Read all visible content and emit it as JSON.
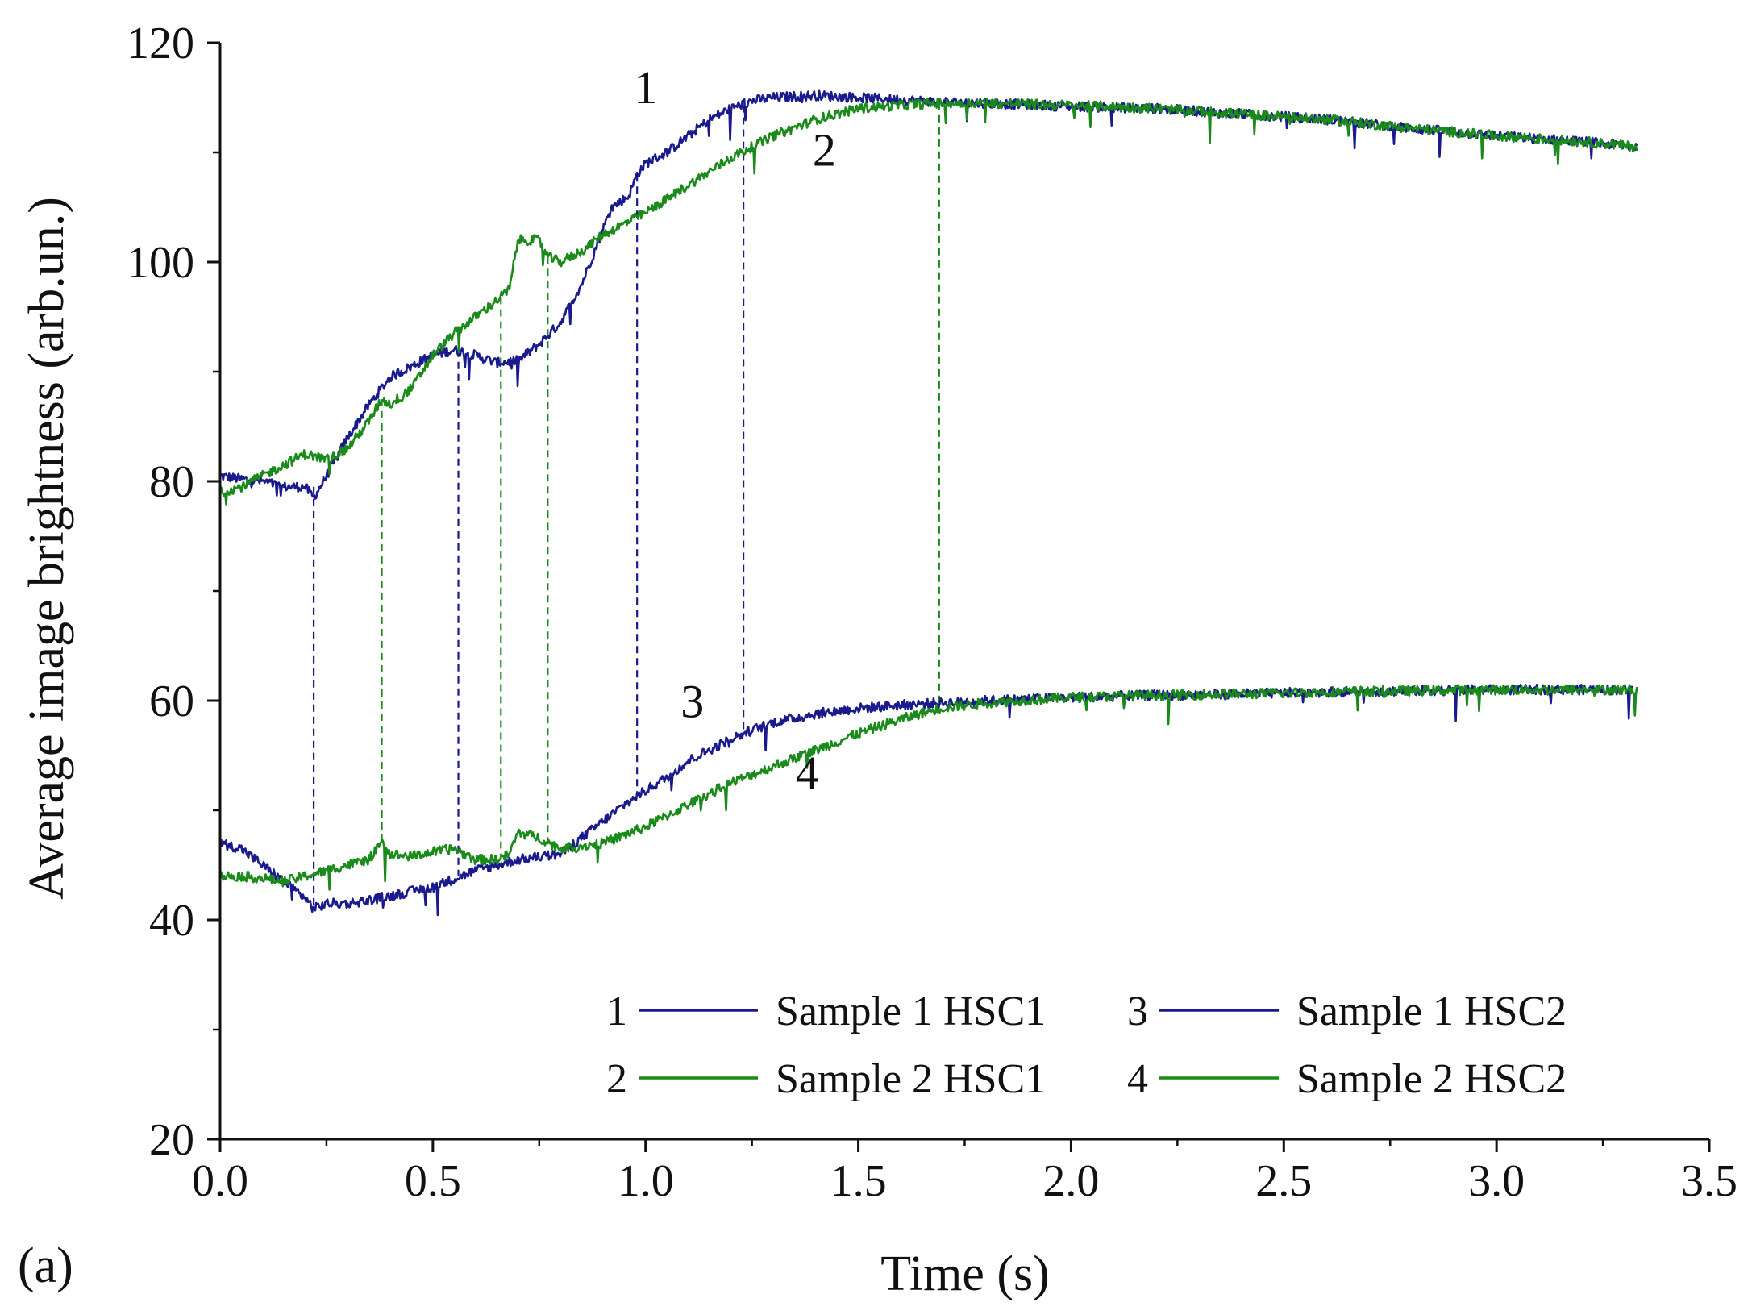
{
  "panel_label": "(a)",
  "chart_data": {
    "type": "line",
    "title": "",
    "xlabel": "Time (s)",
    "ylabel": "Average image brightness (arb.un.)",
    "xlim": [
      0,
      3.5
    ],
    "ylim": [
      20,
      120
    ],
    "xticks": [
      0.0,
      0.5,
      1.0,
      1.5,
      2.0,
      2.5,
      3.0,
      3.5
    ],
    "xtick_labels": [
      "0.0",
      "0.5",
      "1.0",
      "1.5",
      "2.0",
      "2.5",
      "3.0",
      "3.5"
    ],
    "yticks": [
      20,
      40,
      60,
      80,
      100,
      120
    ],
    "ytick_labels": [
      "20",
      "40",
      "60",
      "80",
      "100",
      "120"
    ],
    "colors": {
      "blue": "#1a1a8c",
      "green": "#1a8a1a",
      "axis": "#111111"
    },
    "series": [
      {
        "id": "1",
        "name": "Sample 1 HSC1",
        "color": "#1a1a8c",
        "x": [
          0,
          0.05,
          0.1,
          0.15,
          0.2,
          0.22,
          0.25,
          0.3,
          0.35,
          0.4,
          0.45,
          0.5,
          0.55,
          0.6,
          0.65,
          0.7,
          0.75,
          0.8,
          0.85,
          0.88,
          0.92,
          0.96,
          0.98,
          1.0,
          1.05,
          1.1,
          1.15,
          1.2,
          1.25,
          1.3,
          1.4,
          1.5,
          1.6,
          1.7,
          1.8,
          2.0,
          2.2,
          2.4,
          2.6,
          2.8,
          3.0,
          3.2,
          3.33
        ],
        "y": [
          80.5,
          80.2,
          80.0,
          79.5,
          79.5,
          78.5,
          80.5,
          84.0,
          87.0,
          89.5,
          90.5,
          91.5,
          92.0,
          91.5,
          90.8,
          91.0,
          92.5,
          94.5,
          98.0,
          101.0,
          105.0,
          106.0,
          108.0,
          109.0,
          110.0,
          111.5,
          113.0,
          114.0,
          114.7,
          115.0,
          115.2,
          115.0,
          114.8,
          114.6,
          114.5,
          114.2,
          114.0,
          113.5,
          113.0,
          112.2,
          111.5,
          111.0,
          110.5
        ]
      },
      {
        "id": "2",
        "name": "Sample 2 HSC1",
        "color": "#1a8a1a",
        "x": [
          0,
          0.05,
          0.1,
          0.15,
          0.2,
          0.25,
          0.3,
          0.35,
          0.38,
          0.4,
          0.45,
          0.5,
          0.55,
          0.6,
          0.65,
          0.68,
          0.7,
          0.75,
          0.77,
          0.8,
          0.85,
          0.9,
          0.95,
          1.0,
          1.1,
          1.2,
          1.3,
          1.4,
          1.5,
          1.6,
          1.69,
          1.8,
          2.0,
          2.2,
          2.4,
          2.6,
          2.8,
          3.0,
          3.2,
          3.33
        ],
        "y": [
          79.0,
          79.5,
          80.5,
          81.5,
          82.5,
          82.0,
          83.0,
          85.5,
          87.5,
          87.0,
          88.5,
          91.5,
          93.5,
          95.0,
          96.5,
          97.5,
          102.0,
          102.0,
          100.5,
          100.0,
          101.0,
          102.5,
          103.5,
          104.5,
          107.0,
          109.5,
          111.5,
          113.0,
          114.0,
          114.3,
          114.5,
          114.5,
          114.3,
          114.0,
          113.5,
          113.0,
          112.2,
          111.5,
          111.0,
          110.5
        ]
      },
      {
        "id": "3",
        "name": "Sample 1 HSC2",
        "color": "#1a1a8c",
        "x": [
          0,
          0.05,
          0.1,
          0.15,
          0.2,
          0.22,
          0.25,
          0.3,
          0.35,
          0.4,
          0.5,
          0.6,
          0.7,
          0.8,
          0.85,
          0.9,
          0.95,
          1.0,
          1.05,
          1.1,
          1.15,
          1.2,
          1.25,
          1.3,
          1.4,
          1.5,
          1.6,
          1.7,
          1.8,
          2.0,
          2.2,
          2.4,
          2.6,
          2.8,
          3.0,
          3.2,
          3.33
        ],
        "y": [
          47.0,
          46.5,
          45.0,
          43.5,
          42.0,
          41.0,
          41.5,
          41.5,
          41.8,
          42.2,
          43.0,
          44.5,
          45.5,
          46.0,
          47.5,
          49.0,
          50.5,
          51.8,
          53.0,
          54.5,
          55.5,
          56.5,
          57.3,
          58.0,
          58.8,
          59.3,
          59.6,
          59.8,
          60.0,
          60.3,
          60.5,
          60.6,
          60.8,
          60.9,
          61.0,
          61.0,
          61.0
        ]
      },
      {
        "id": "4",
        "name": "Sample 2 HSC2",
        "color": "#1a8a1a",
        "x": [
          0,
          0.05,
          0.1,
          0.15,
          0.2,
          0.25,
          0.3,
          0.35,
          0.38,
          0.4,
          0.45,
          0.5,
          0.55,
          0.6,
          0.65,
          0.68,
          0.7,
          0.75,
          0.8,
          0.9,
          1.0,
          1.1,
          1.2,
          1.3,
          1.4,
          1.5,
          1.6,
          1.69,
          1.8,
          2.0,
          2.2,
          2.4,
          2.6,
          2.8,
          3.0,
          3.2,
          3.33
        ],
        "y": [
          44.0,
          44.0,
          43.8,
          43.5,
          44.0,
          44.5,
          45.0,
          45.5,
          47.0,
          46.0,
          45.8,
          46.2,
          46.5,
          45.5,
          45.5,
          46.0,
          48.0,
          47.5,
          46.5,
          47.0,
          48.5,
          50.5,
          52.5,
          54.0,
          55.5,
          57.0,
          58.3,
          59.3,
          59.8,
          60.3,
          60.5,
          60.6,
          60.8,
          60.9,
          61.0,
          61.0,
          61.0
        ]
      }
    ],
    "curve_labels": [
      {
        "text": "1",
        "x": 1.0,
        "y": 114.5
      },
      {
        "text": "2",
        "x": 1.42,
        "y": 108.8
      },
      {
        "text": "3",
        "x": 1.11,
        "y": 58.5
      },
      {
        "text": "4",
        "x": 1.38,
        "y": 52.0
      }
    ],
    "markers": [
      {
        "x": 0.22,
        "y_top": 79.5,
        "y_bottom": 41.0,
        "color": "#1a1a8c"
      },
      {
        "x": 0.38,
        "y_top": 87.5,
        "y_bottom": 47.0,
        "color": "#1a8a1a"
      },
      {
        "x": 0.56,
        "y_top": 92.0,
        "y_bottom": 44.0,
        "color": "#1a1a8c"
      },
      {
        "x": 0.66,
        "y_top": 96.8,
        "y_bottom": 45.5,
        "color": "#1a8a1a"
      },
      {
        "x": 0.77,
        "y_top": 100.5,
        "y_bottom": 46.5,
        "color": "#1a8a1a"
      },
      {
        "x": 0.98,
        "y_top": 108.0,
        "y_bottom": 51.5,
        "color": "#1a1a8c"
      },
      {
        "x": 1.23,
        "y_top": 114.3,
        "y_bottom": 57.0,
        "color": "#1a1a8c"
      },
      {
        "x": 1.69,
        "y_top": 114.5,
        "y_bottom": 59.3,
        "color": "#1a8a1a"
      }
    ],
    "legend": {
      "placement": "bottom-right",
      "columns": 2,
      "entries": [
        {
          "id": "1",
          "name": "Sample 1 HSC1",
          "color": "#1a1a8c"
        },
        {
          "id": "3",
          "name": "Sample 1 HSC2",
          "color": "#1a1a8c"
        },
        {
          "id": "2",
          "name": "Sample 2 HSC1",
          "color": "#1a8a1a"
        },
        {
          "id": "4",
          "name": "Sample 2 HSC2",
          "color": "#1a8a1a"
        }
      ]
    }
  }
}
